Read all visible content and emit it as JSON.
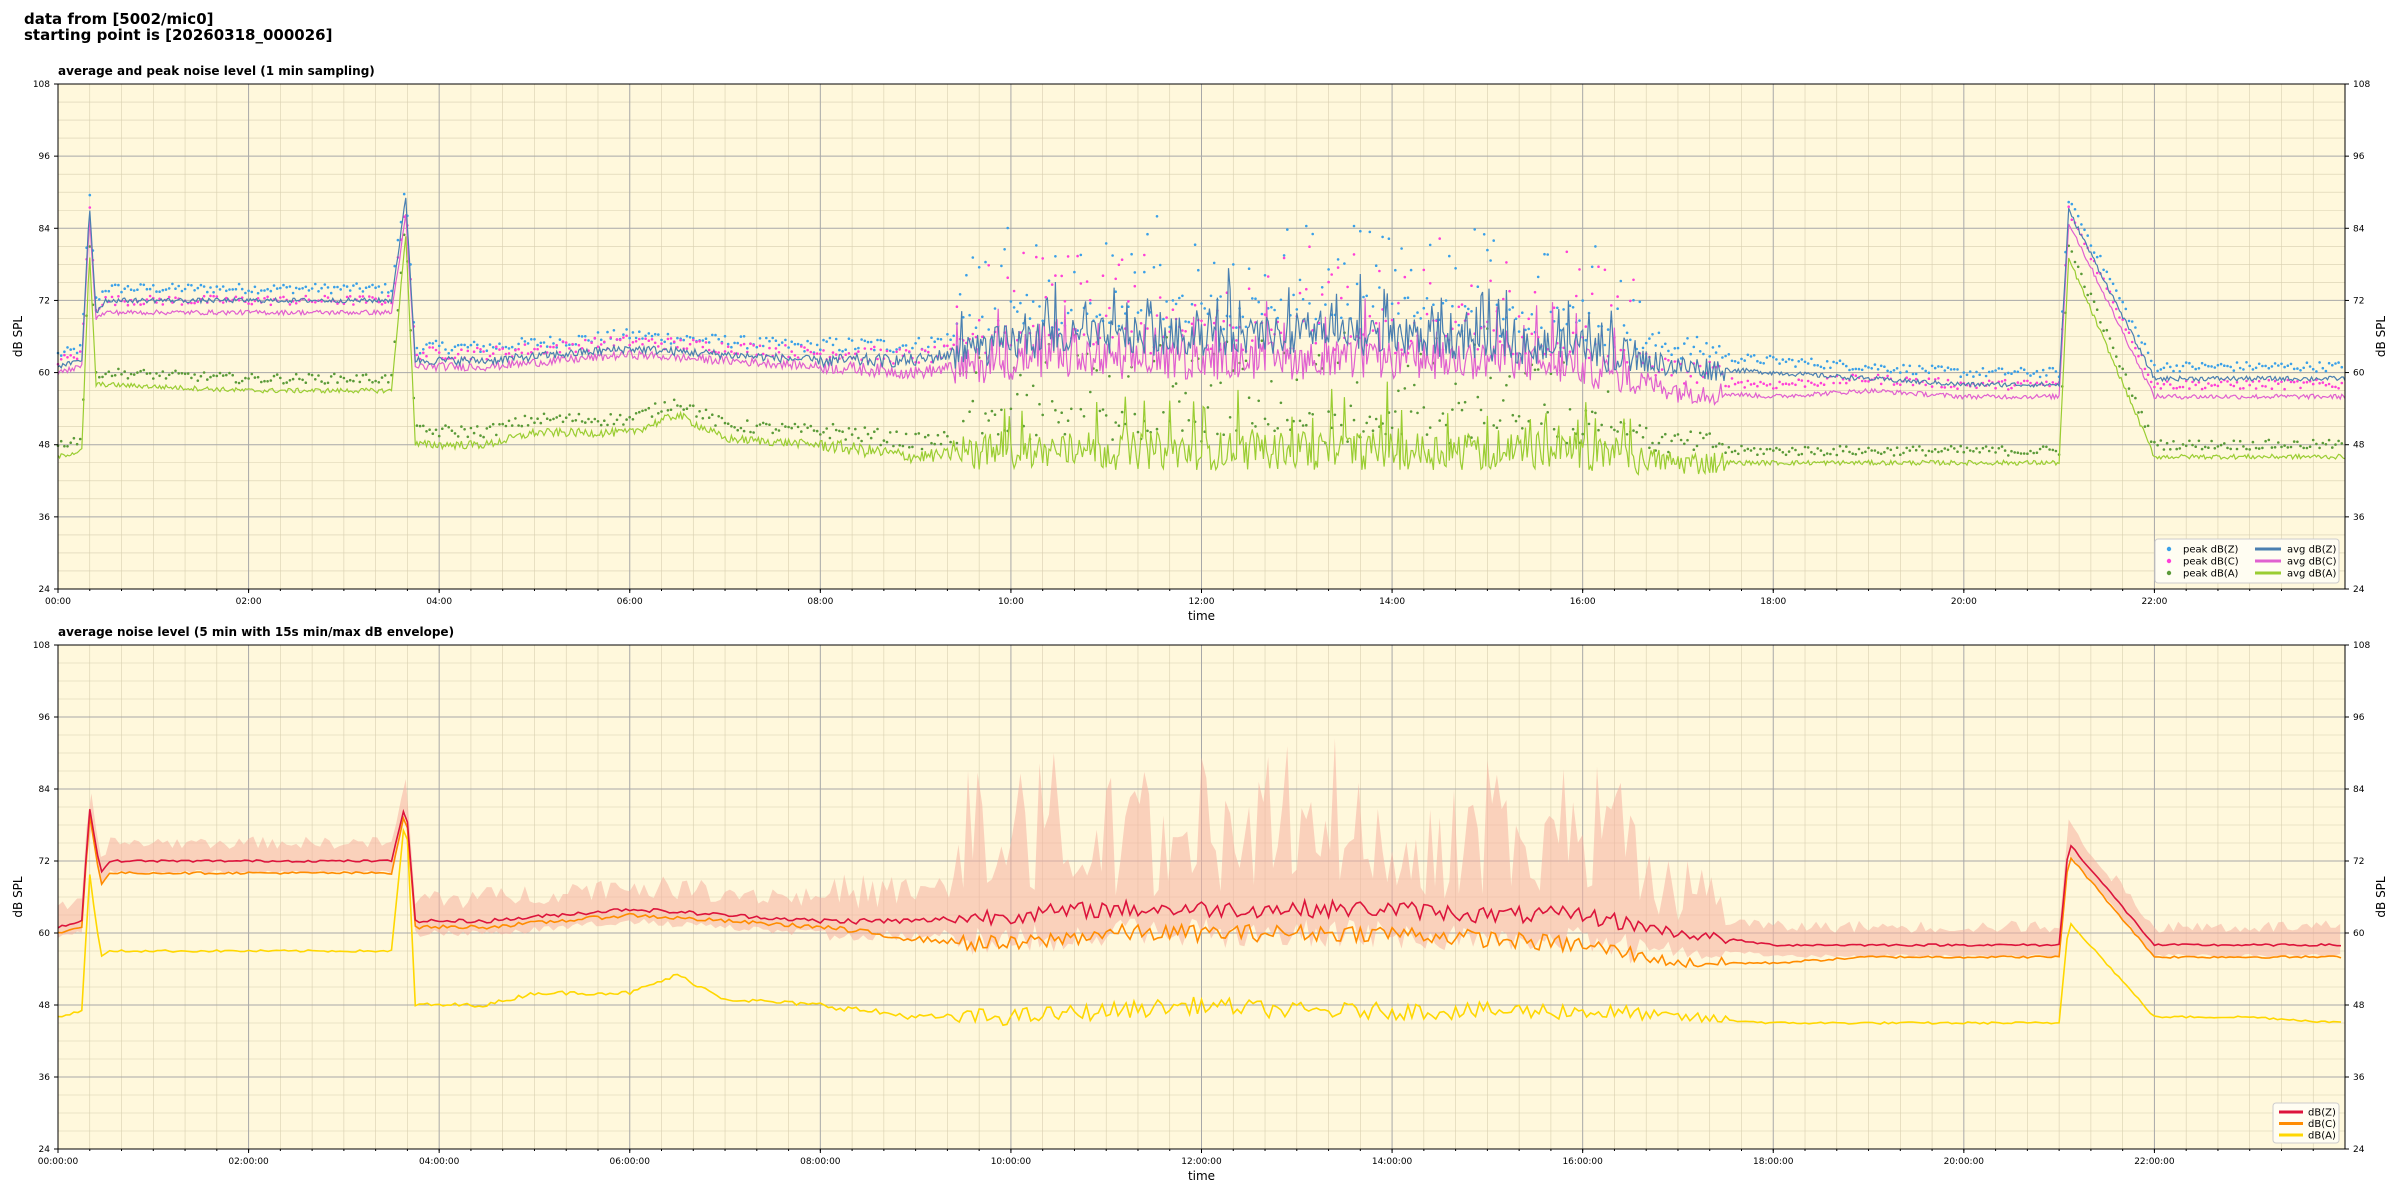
{
  "header": {
    "line1": "data from [5002/mic0]",
    "line2": "starting point is [20260318_000026]"
  },
  "colors": {
    "background": "#fff8dc",
    "peak_z": "#3aa0e8",
    "peak_c": "#ff3fd8",
    "peak_a": "#5a9a38",
    "avg_z": "#4a7fb0",
    "avg_c": "#e060d0",
    "avg_a": "#9acd32",
    "db_z": "#dc143c",
    "db_c": "#ff8c00",
    "db_a": "#ffd700",
    "envelope": "#f5b0a0"
  },
  "chart_data": [
    {
      "type": "scatter+line",
      "title": "average and peak noise level (1 min sampling)",
      "xlabel": "time",
      "ylabel": "dB SPL",
      "ylim": [
        24,
        108
      ],
      "xlim_hours": [
        0,
        24
      ],
      "yticks": [
        "24",
        "36",
        "48",
        "60",
        "72",
        "84",
        "96",
        "108"
      ],
      "xticks": [
        "00:00",
        "02:00",
        "04:00",
        "06:00",
        "08:00",
        "10:00",
        "12:00",
        "14:00",
        "16:00",
        "18:00",
        "20:00",
        "22:00"
      ],
      "grid": true,
      "legend_position": "bottom-right",
      "legend": [
        "peak dB(Z)",
        "peak dB(C)",
        "peak dB(A)",
        "avg dB(Z)",
        "avg dB(C)",
        "avg dB(A)"
      ],
      "series": [
        {
          "name": "avg dB(Z)",
          "x": [
            0,
            0.25,
            0.33,
            0.4,
            0.5,
            2.0,
            3.5,
            3.65,
            3.75,
            4.5,
            6.0,
            7.0,
            8.0,
            9.0,
            10.0,
            11.0,
            12.0,
            13.0,
            14.0,
            15.0,
            16.0,
            17.0,
            18.0,
            19.0,
            20.0,
            21.0,
            21.1,
            22.0,
            23.0,
            24.0
          ],
          "y": [
            61,
            62,
            88,
            70,
            72,
            72,
            72,
            89,
            62,
            62,
            64,
            63,
            62,
            62,
            65,
            66,
            66,
            66,
            66,
            65,
            64,
            61,
            60,
            59,
            58,
            58,
            87,
            59,
            59,
            59
          ]
        },
        {
          "name": "avg dB(C)",
          "x": [
            0,
            0.25,
            0.33,
            0.4,
            0.5,
            2.0,
            3.5,
            3.65,
            3.75,
            4.5,
            6.0,
            7.0,
            8.0,
            9.0,
            10.0,
            11.0,
            12.0,
            13.0,
            14.0,
            15.0,
            16.0,
            17.0,
            18.0,
            19.0,
            20.0,
            21.0,
            21.1,
            22.0,
            23.0,
            24.0
          ],
          "y": [
            60,
            61,
            86,
            69,
            70,
            70,
            70,
            86,
            61,
            61,
            63,
            62,
            61,
            60,
            62,
            62,
            62,
            62,
            62,
            62,
            61,
            57,
            56,
            57,
            56,
            56,
            85,
            56,
            56,
            56
          ]
        },
        {
          "name": "avg dB(A)",
          "x": [
            0,
            0.25,
            0.33,
            0.4,
            0.5,
            2.0,
            3.5,
            3.65,
            3.75,
            4.5,
            5.0,
            6.0,
            6.5,
            7.0,
            8.0,
            9.0,
            10.0,
            11.0,
            12.0,
            13.0,
            14.0,
            15.0,
            16.0,
            17.0,
            18.0,
            19.0,
            20.0,
            21.0,
            21.1,
            22.0,
            23.0,
            24.0
          ],
          "y": [
            46,
            47,
            80,
            58,
            58,
            57,
            57,
            83,
            48,
            48,
            50,
            50,
            53,
            49,
            48,
            46,
            47,
            47,
            47,
            47,
            47,
            47,
            47,
            45,
            45,
            45,
            45,
            45,
            79,
            46,
            46,
            46
          ]
        }
      ]
    },
    {
      "type": "line+area",
      "title": "average noise level (5 min with 15s min/max dB envelope)",
      "xlabel": "time",
      "ylabel": "dB SPL",
      "ylim": [
        24,
        108
      ],
      "xlim_hours": [
        0,
        24
      ],
      "yticks": [
        "24",
        "36",
        "48",
        "60",
        "72",
        "84",
        "96",
        "108"
      ],
      "xticks": [
        "00:00:00",
        "02:00:00",
        "04:00:00",
        "06:00:00",
        "08:00:00",
        "10:00:00",
        "12:00:00",
        "14:00:00",
        "16:00:00",
        "18:00:00",
        "20:00:00",
        "22:00:00"
      ],
      "grid": true,
      "legend_position": "bottom-right",
      "legend": [
        "dB(Z)",
        "dB(C)",
        "dB(A)"
      ],
      "series": [
        {
          "name": "dB(Z)",
          "x": [
            0,
            0.25,
            0.33,
            0.45,
            0.55,
            2.0,
            3.5,
            3.65,
            3.75,
            4.5,
            6.0,
            7.0,
            8.0,
            9.0,
            10.0,
            11.0,
            12.0,
            13.0,
            14.0,
            15.0,
            16.0,
            17.0,
            18.0,
            19.0,
            20.0,
            21.0,
            21.1,
            22.0,
            23.0,
            24.0
          ],
          "y": [
            61,
            62,
            81,
            70,
            72,
            72,
            72,
            82,
            62,
            62,
            64,
            63,
            62,
            62,
            63,
            64,
            64,
            64,
            64,
            63,
            63,
            60,
            58,
            58,
            58,
            58,
            75,
            58,
            58,
            58
          ]
        },
        {
          "name": "dB(C)",
          "x": [
            0,
            0.25,
            0.33,
            0.45,
            0.55,
            2.0,
            3.5,
            3.65,
            3.75,
            4.5,
            6.0,
            7.0,
            8.0,
            9.0,
            10.0,
            11.0,
            12.0,
            13.0,
            14.0,
            15.0,
            16.0,
            17.0,
            18.0,
            19.0,
            20.0,
            21.0,
            21.1,
            22.0,
            23.0,
            24.0
          ],
          "y": [
            60,
            61,
            80,
            68,
            70,
            70,
            70,
            81,
            61,
            61,
            63,
            62,
            61,
            59,
            58,
            60,
            60,
            60,
            60,
            59,
            58,
            55,
            55,
            56,
            56,
            56,
            73,
            56,
            56,
            56
          ]
        },
        {
          "name": "dB(A)",
          "x": [
            0,
            0.25,
            0.33,
            0.45,
            0.55,
            2.0,
            3.5,
            3.65,
            3.75,
            4.5,
            5.0,
            6.0,
            6.5,
            7.0,
            8.0,
            9.0,
            10.0,
            11.0,
            12.0,
            13.0,
            14.0,
            15.0,
            16.0,
            17.0,
            18.0,
            19.0,
            20.0,
            21.0,
            21.1,
            22.0,
            23.0,
            24.0
          ],
          "y": [
            46,
            47,
            70,
            56,
            57,
            57,
            57,
            81,
            48,
            48,
            50,
            50,
            53,
            49,
            48,
            46,
            46,
            47,
            48,
            47,
            47,
            47,
            47,
            46,
            45,
            45,
            45,
            45,
            62,
            46,
            46,
            45
          ]
        }
      ]
    }
  ]
}
